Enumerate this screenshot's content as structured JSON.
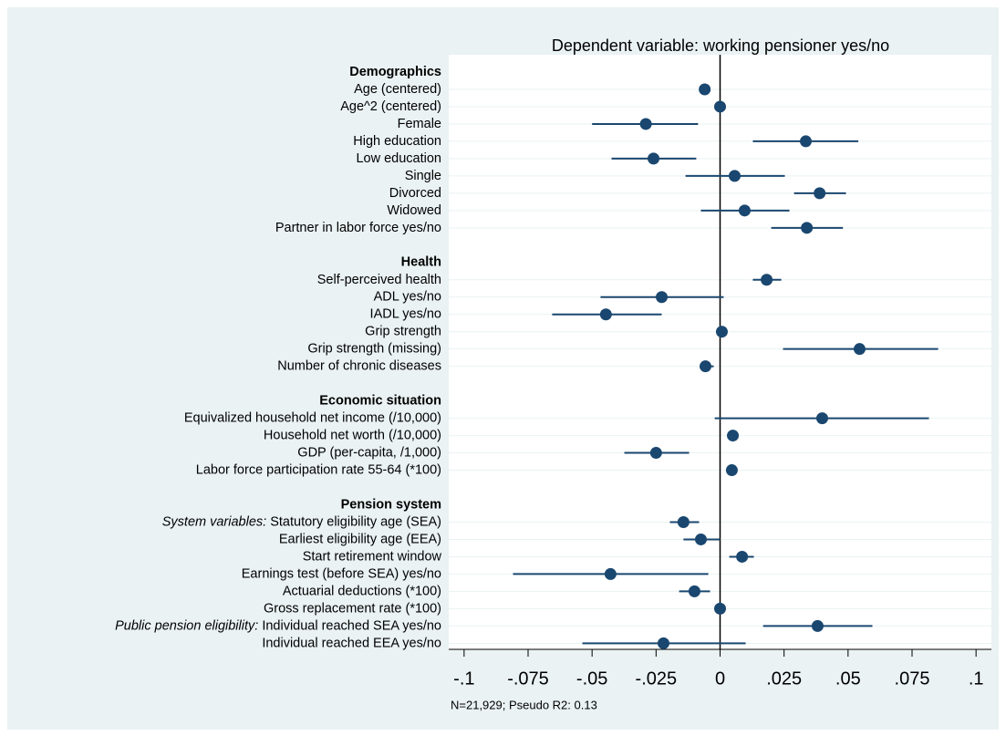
{
  "chart_data": {
    "type": "coefplot",
    "title": "Dependent variable: working pensioner yes/no",
    "note": "N=21,929; Pseudo R2: 0.13",
    "color": "#1a476f",
    "xline": 0,
    "xlim": [
      -0.106,
      0.106
    ],
    "xticks": [
      {
        "value": -0.1,
        "label": "-.1"
      },
      {
        "value": -0.075,
        "label": "-.075"
      },
      {
        "value": -0.05,
        "label": "-.05"
      },
      {
        "value": -0.025,
        "label": "-.025"
      },
      0,
      {
        "value": 0.025,
        "label": ".025"
      },
      {
        "value": 0.05,
        "label": ".05"
      },
      {
        "value": 0.075,
        "label": ".075"
      },
      {
        "value": 0.1,
        "label": ".1"
      }
    ],
    "grid": true,
    "groups": [
      {
        "name": "Demographics",
        "items": [
          {
            "label": "Age (centered)",
            "estimate": -0.006,
            "ci_low": -0.0075,
            "ci_high": -0.0045
          },
          {
            "label": "Age^2 (centered)",
            "estimate": 0.0,
            "ci_low": -0.0004,
            "ci_high": 0.0004
          },
          {
            "label": "Female",
            "estimate": -0.029,
            "ci_low": -0.05,
            "ci_high": -0.0086
          },
          {
            "label": "High education",
            "estimate": 0.0335,
            "ci_low": 0.0128,
            "ci_high": 0.054
          },
          {
            "label": "Low education",
            "estimate": -0.026,
            "ci_low": -0.0424,
            "ci_high": -0.0093
          },
          {
            "label": "Single",
            "estimate": 0.0057,
            "ci_low": -0.0135,
            "ci_high": 0.0253
          },
          {
            "label": "Divorced",
            "estimate": 0.0389,
            "ci_low": 0.0289,
            "ci_high": 0.0492
          },
          {
            "label": "Widowed",
            "estimate": 0.0096,
            "ci_low": -0.0075,
            "ci_high": 0.0271
          },
          {
            "label": "Partner in labor force yes/no",
            "estimate": 0.0339,
            "ci_low": 0.02,
            "ci_high": 0.048
          }
        ]
      },
      {
        "name": "Health",
        "items": [
          {
            "label": "Self-perceived health",
            "estimate": 0.0182,
            "ci_low": 0.0128,
            "ci_high": 0.0239
          },
          {
            "label": "ADL yes/no",
            "estimate": -0.0228,
            "ci_low": -0.0467,
            "ci_high": 0.0014
          },
          {
            "label": "IADL yes/no",
            "estimate": -0.0446,
            "ci_low": -0.0656,
            "ci_high": -0.0228
          },
          {
            "label": "Grip strength",
            "estimate": 0.0007,
            "ci_low": 0.0003,
            "ci_high": 0.0011
          },
          {
            "label": "Grip strength (missing)",
            "estimate": 0.0545,
            "ci_low": 0.0246,
            "ci_high": 0.0852
          },
          {
            "label": "Number of chronic diseases",
            "estimate": -0.0057,
            "ci_low": -0.0078,
            "ci_high": -0.0025
          }
        ]
      },
      {
        "name": "Economic situation",
        "items": [
          {
            "label": "Equivalized household net income (/10,000)",
            "estimate": 0.0399,
            "ci_low": -0.0021,
            "ci_high": 0.0816
          },
          {
            "label": "Household net worth (/10,000)",
            "estimate": 0.005,
            "ci_low": 0.0046,
            "ci_high": 0.0054
          },
          {
            "label": "GDP (per-capita, /1,000)",
            "estimate": -0.025,
            "ci_low": -0.0374,
            "ci_high": -0.0121
          },
          {
            "label": "Labor force participation rate 55-64 (*100)",
            "estimate": 0.0046,
            "ci_low": 0.0042,
            "ci_high": 0.005
          }
        ]
      },
      {
        "name": "Pension system",
        "items": [
          {
            "prefix": "System variables:",
            "label": "Statutory eligibility age (SEA)",
            "estimate": -0.0143,
            "ci_low": -0.0196,
            "ci_high": -0.0082
          },
          {
            "label": "Earliest eligibility age (EEA)",
            "estimate": -0.0075,
            "ci_low": -0.0143,
            "ci_high": 0.0
          },
          {
            "label": "Start retirement window",
            "estimate": 0.0086,
            "ci_low": 0.0036,
            "ci_high": 0.0132
          },
          {
            "label": "Earnings test (before SEA) yes/no",
            "estimate": -0.0428,
            "ci_low": -0.0809,
            "ci_high": -0.0046
          },
          {
            "label": "Actuarial deductions (*100)",
            "estimate": -0.01,
            "ci_low": -0.016,
            "ci_high": -0.0039
          },
          {
            "label": "Gross replacement rate (*100)",
            "estimate": 0.0,
            "ci_low": -0.0004,
            "ci_high": 0.0004
          },
          {
            "prefix": "Public pension eligibility:",
            "label": "Individual reached SEA yes/no",
            "estimate": 0.0381,
            "ci_low": 0.0168,
            "ci_high": 0.0595
          },
          {
            "label": "Individual reached EEA yes/no",
            "estimate": -0.0221,
            "ci_low": -0.0538,
            "ci_high": 0.01
          }
        ]
      }
    ]
  }
}
